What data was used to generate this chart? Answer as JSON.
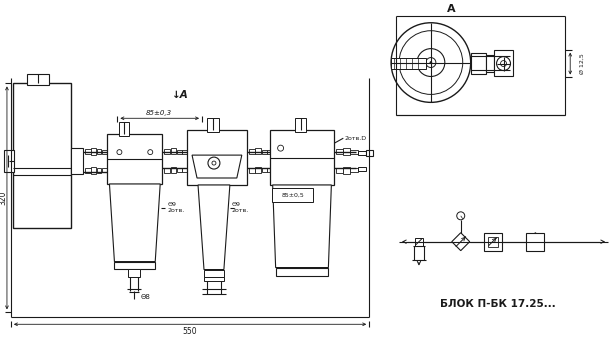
{
  "bg_color": "#ffffff",
  "line_color": "#1a1a1a",
  "fig_width": 6.13,
  "fig_height": 3.55,
  "dpi": 100,
  "annotations": {
    "view_label": "↓A",
    "section_label": "A",
    "dim_85": "85±0,3",
    "dim_320": "320",
    "dim_550": "550",
    "dim_d9_1": "Θ9\n2отв.",
    "dim_d9_2": "Θ9\n2отв.",
    "dim_d8": "Θ8",
    "dim_2otv": "2отв.D",
    "dim_85_2": "85±0,5",
    "dim_d125": "Ø 12,5",
    "block_name": "БЛОК П-БК 17.25..."
  }
}
